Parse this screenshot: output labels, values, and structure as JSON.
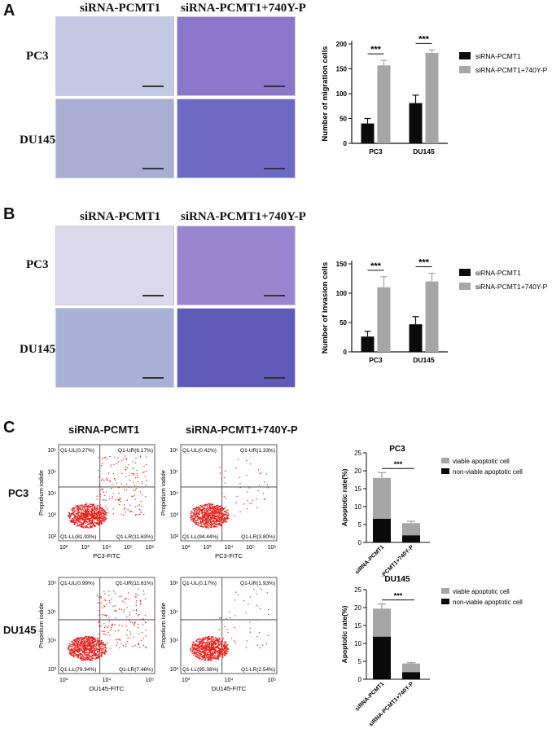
{
  "panels": {
    "A": {
      "letter": "A",
      "col_headers": [
        "siRNA-PCMT1",
        "siRNA-PCMT1+740Y-P"
      ],
      "row_labels": [
        "PC3",
        "DU145"
      ]
    },
    "B": {
      "letter": "B",
      "col_headers": [
        "siRNA-PCMT1",
        "siRNA-PCMT1+740Y-P"
      ],
      "row_labels": [
        "PC3",
        "DU145"
      ]
    },
    "C": {
      "letter": "C",
      "col_headers": [
        "siRNA-PCMT1",
        "siRNA-PCMT1+740Y-P"
      ],
      "row_labels": [
        "PC3",
        "DU145"
      ],
      "flow": [
        {
          "xlabel": "PC3-FITC",
          "ylabel": "Propidium iodide",
          "UL": "Q1-UL(0.27%)",
          "UR": "Q1-UR(6.17%)",
          "LL": "Q1-LL(81.93%)",
          "LR": "Q1-LR(11.63%)"
        },
        {
          "xlabel": "PC3-FITC",
          "ylabel": "Propidium iodide",
          "UL": "Q1-UL(0.42%)",
          "UR": "Q1-UR(1.33%)",
          "LL": "Q1-LL(94.44%)",
          "LR": "Q1-LR(3.80%)"
        },
        {
          "xlabel": "DU145-FITC",
          "ylabel": "Propidium iodide",
          "UL": "Q1-UL(0.99%)",
          "UR": "Q1-UR(11.61%)",
          "LL": "Q1-LL(79.94%)",
          "LR": "Q1-LR(7.46%)"
        },
        {
          "xlabel": "DU145-FITC",
          "ylabel": "Propidium iodide",
          "UL": "Q1-UL(0.17%)",
          "UR": "Q1-UR(1.93%)",
          "LL": "Q1-LL(95.38%)",
          "LR": "Q1-LR(2.54%)"
        }
      ],
      "flow_axis": {
        "x_ticks": [
          "10²",
          "10³",
          "10⁴",
          "10⁵",
          "10⁶"
        ],
        "y_ticks": [
          "10⁶",
          "10⁵",
          "10⁴",
          "10³",
          "10²"
        ],
        "x_ticks_du145": [
          "10³",
          "10⁴",
          "10⁵"
        ],
        "y_ticks_du145": [
          "10⁶",
          "10⁵",
          "10⁴",
          "10³"
        ]
      }
    }
  },
  "colors": {
    "black_bar": "#0a0a0a",
    "grey_bar": "#a6a6a6",
    "dots": "#e8201c",
    "stain_light": "#b9c1df",
    "stain_dark": "#4a3f9e"
  },
  "chart_data": [
    {
      "type": "bar",
      "id": "migration",
      "categories": [
        "PC3",
        "DU145"
      ],
      "series": [
        {
          "name": "siRNA-PCMT1",
          "values": [
            40,
            81
          ],
          "errors": [
            10,
            16
          ]
        },
        {
          "name": "siRNA-PCMT1+740Y-P",
          "values": [
            157,
            182
          ],
          "errors": [
            10,
            6
          ]
        }
      ],
      "ylabel": "Number of migration cells",
      "ylim": [
        0,
        200
      ],
      "yticks": [
        0,
        50,
        100,
        150,
        200
      ],
      "significance": [
        "***",
        "***"
      ],
      "legend_position": "right"
    },
    {
      "type": "bar",
      "id": "invasion",
      "categories": [
        "PC3",
        "DU145"
      ],
      "series": [
        {
          "name": "siRNA-PCMT1",
          "values": [
            26,
            47
          ],
          "errors": [
            9,
            13
          ]
        },
        {
          "name": "siRNA-PCMT1+740Y-P",
          "values": [
            110,
            120
          ],
          "errors": [
            18,
            14
          ]
        }
      ],
      "ylabel": "Number of invasion cells",
      "ylim": [
        0,
        150
      ],
      "yticks": [
        0,
        50,
        100,
        150
      ],
      "significance": [
        "***",
        "***"
      ],
      "legend_position": "right"
    },
    {
      "type": "bar",
      "id": "apoptosis-pc3",
      "title": "PC3",
      "stacked": true,
      "categories": [
        "siRNA-PCMT1",
        "siRNA-PCMT1+740Y-P"
      ],
      "series": [
        {
          "name": "non-viable apoptotic cell",
          "values": [
            6.6,
            2.0
          ],
          "errors": [
            0.9,
            0.5
          ]
        },
        {
          "name": "viable apoptotic cell",
          "values": [
            11.4,
            3.4
          ],
          "errors": [
            1.5,
            0.5
          ]
        }
      ],
      "ylabel": "Apoptotic rate(%)",
      "ylim": [
        0,
        25
      ],
      "yticks": [
        0,
        5,
        10,
        15,
        20,
        25
      ],
      "significance": "***",
      "legend_position": "top-right"
    },
    {
      "type": "bar",
      "id": "apoptosis-du145",
      "title": "DU145",
      "stacked": true,
      "categories": [
        "siRNA-PCMT1",
        "siRNA-PCMT1+740Y-P"
      ],
      "series": [
        {
          "name": "non-viable apoptotic cell",
          "values": [
            11.9,
            2.0
          ],
          "errors": [
            1.5,
            0.3
          ]
        },
        {
          "name": "viable apoptotic cell",
          "values": [
            7.8,
            2.4
          ],
          "errors": [
            1.3,
            0.2
          ]
        }
      ],
      "ylabel": "Apoptotic rate(%)",
      "ylim": [
        0,
        25
      ],
      "yticks": [
        0,
        5,
        10,
        15,
        20,
        25
      ],
      "significance": "***",
      "legend_position": "top-right"
    }
  ]
}
